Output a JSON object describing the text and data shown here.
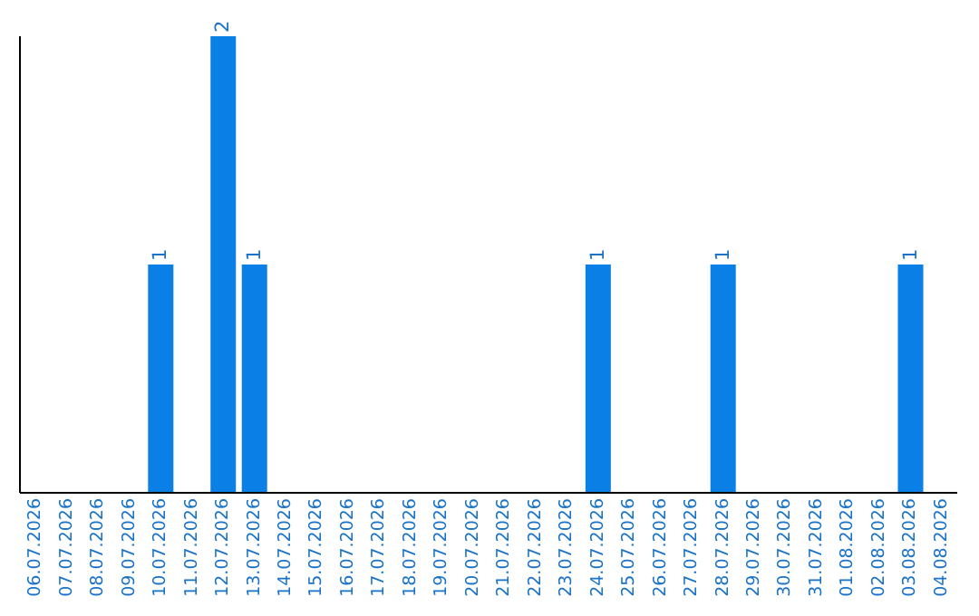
{
  "chart_data": {
    "type": "bar",
    "categories": [
      "06.07.2026",
      "07.07.2026",
      "08.07.2026",
      "09.07.2026",
      "10.07.2026",
      "11.07.2026",
      "12.07.2026",
      "13.07.2026",
      "14.07.2026",
      "15.07.2026",
      "16.07.2026",
      "17.07.2026",
      "18.07.2026",
      "19.07.2026",
      "20.07.2026",
      "21.07.2026",
      "22.07.2026",
      "23.07.2026",
      "24.07.2026",
      "25.07.2026",
      "26.07.2026",
      "27.07.2026",
      "28.07.2026",
      "29.07.2026",
      "30.07.2026",
      "31.07.2026",
      "01.08.2026",
      "02.08.2026",
      "03.08.2026",
      "04.08.2026"
    ],
    "values": [
      0,
      0,
      0,
      0,
      1,
      0,
      2,
      1,
      0,
      0,
      0,
      0,
      0,
      0,
      0,
      0,
      0,
      0,
      1,
      0,
      0,
      0,
      1,
      0,
      0,
      0,
      0,
      0,
      1,
      0
    ],
    "value_labels": [
      null,
      null,
      null,
      null,
      "1",
      null,
      "2",
      "1",
      null,
      null,
      null,
      null,
      null,
      null,
      null,
      null,
      null,
      null,
      "1",
      null,
      null,
      null,
      "1",
      null,
      null,
      null,
      null,
      null,
      "1",
      null
    ],
    "color": "#0a7fe6",
    "data_labels": true,
    "tick_labels": "x",
    "grid": false,
    "legend": false
  }
}
